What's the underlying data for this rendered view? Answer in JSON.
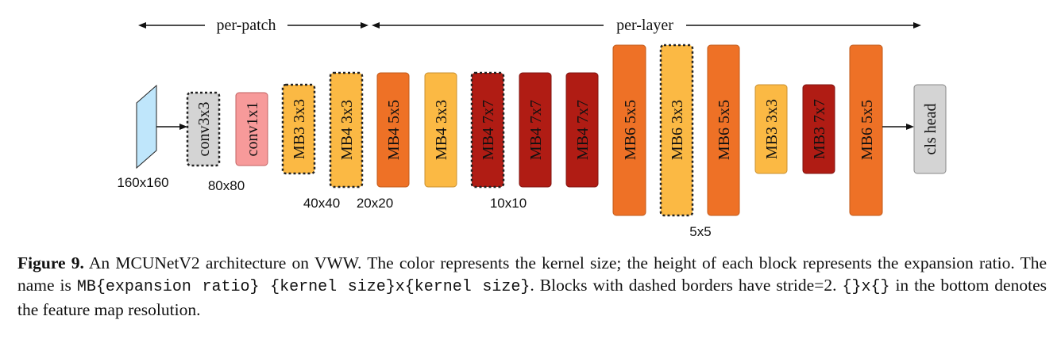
{
  "header": {
    "per_patch": "per-patch",
    "per_layer": "per-layer"
  },
  "input": {
    "resolution": "160x160"
  },
  "blocks": [
    {
      "id": "conv3x3",
      "label": "conv3x3",
      "color": "#d4d4d4",
      "dashed": true,
      "expansion": 0
    },
    {
      "id": "conv1x1",
      "label": "conv1x1",
      "color": "#f79a9a",
      "dashed": false,
      "expansion": 0
    },
    {
      "id": "mb3-3x3-a",
      "label": "MB3 3x3",
      "color": "#fbb944",
      "dashed": true,
      "expansion": 3
    },
    {
      "id": "mb4-3x3-a",
      "label": "MB4 3x3",
      "color": "#fbb944",
      "dashed": true,
      "expansion": 4
    },
    {
      "id": "mb4-5x5",
      "label": "MB4 5x5",
      "color": "#ee7126",
      "dashed": false,
      "expansion": 4
    },
    {
      "id": "mb4-3x3-b",
      "label": "MB4 3x3",
      "color": "#fbb944",
      "dashed": false,
      "expansion": 4
    },
    {
      "id": "mb4-7x7-a",
      "label": "MB4 7x7",
      "color": "#b01c14",
      "dashed": true,
      "expansion": 4
    },
    {
      "id": "mb4-7x7-b",
      "label": "MB4 7x7",
      "color": "#b01c14",
      "dashed": false,
      "expansion": 4
    },
    {
      "id": "mb4-7x7-c",
      "label": "MB4 7x7",
      "color": "#b01c14",
      "dashed": false,
      "expansion": 4
    },
    {
      "id": "mb6-5x5-a",
      "label": "MB6 5x5",
      "color": "#ee7126",
      "dashed": false,
      "expansion": 6
    },
    {
      "id": "mb6-3x3",
      "label": "MB6 3x3",
      "color": "#fbb944",
      "dashed": true,
      "expansion": 6
    },
    {
      "id": "mb6-5x5-b",
      "label": "MB6 5x5",
      "color": "#ee7126",
      "dashed": false,
      "expansion": 6
    },
    {
      "id": "mb3-3x3-b",
      "label": "MB3 3x3",
      "color": "#fbb944",
      "dashed": false,
      "expansion": 3
    },
    {
      "id": "mb3-7x7",
      "label": "MB3 7x7",
      "color": "#b01c14",
      "dashed": false,
      "expansion": 3
    },
    {
      "id": "mb6-5x5-c",
      "label": "MB6 5x5",
      "color": "#ee7126",
      "dashed": false,
      "expansion": 6
    },
    {
      "id": "cls-head",
      "label": "cls head",
      "color": "#d4d4d4",
      "dashed": false,
      "expansion": 0
    }
  ],
  "resolutions": [
    "80x80",
    "40x40",
    "20x20",
    "10x10",
    "5x5"
  ],
  "caption": {
    "label": "Figure 9.",
    "text1": " An MCUNetV2 architecture on VWW. The color represents the kernel size; the height of each block represents the expansion ratio. The name is ",
    "code1": "MB{expansion ratio} {kernel size}x{kernel size}",
    "text2": ". Blocks with dashed borders have stride=2. ",
    "code2": "{}x{}",
    "text3": " in the bottom denotes the feature map resolution."
  }
}
